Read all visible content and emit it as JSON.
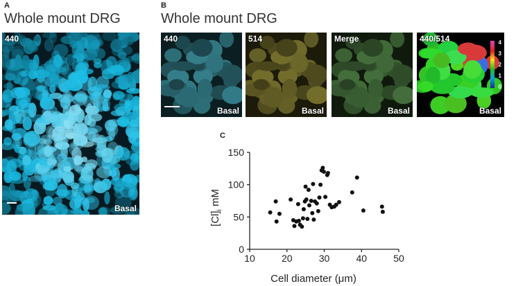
{
  "panel_a": {
    "letter": "A",
    "title": "Whole mount DRG",
    "channel_label": "440",
    "condition_label": "Basal"
  },
  "panel_b": {
    "letter": "B",
    "title": "Whole mount DRG",
    "images": [
      {
        "label": "440",
        "condition": "Basal",
        "tint": "#1fb8c8"
      },
      {
        "label": "514",
        "condition": "Basal",
        "tint": "#c8b02a"
      },
      {
        "label": "Merge",
        "condition": "Basal",
        "tint": "#6fae5c"
      },
      {
        "label": "440/514",
        "condition": "Basal",
        "tint": "#3cc83c"
      }
    ],
    "colorbar_ticks": [
      "4",
      "3",
      "2",
      "1",
      "0"
    ]
  },
  "panel_c": {
    "letter": "C"
  },
  "chart_data": {
    "type": "scatter",
    "xlabel": "Cell diameter (μm)",
    "ylabel": "[Cl]",
    "ylabel_sub": "i",
    "ylabel_unit": " mM",
    "xlim": [
      10,
      50
    ],
    "ylim": [
      0,
      150
    ],
    "xticks": [
      10,
      20,
      30,
      40,
      50
    ],
    "yticks": [
      0,
      50,
      100,
      150
    ],
    "grid": false,
    "points": [
      [
        15.5,
        57
      ],
      [
        17,
        74
      ],
      [
        17.2,
        43
      ],
      [
        18,
        55
      ],
      [
        21,
        77
      ],
      [
        21.7,
        45
      ],
      [
        22,
        36
      ],
      [
        22.5,
        43
      ],
      [
        23,
        70
      ],
      [
        23.2,
        44
      ],
      [
        23.5,
        38
      ],
      [
        24,
        35
      ],
      [
        24.3,
        48
      ],
      [
        24.5,
        62
      ],
      [
        24.8,
        74
      ],
      [
        25,
        97
      ],
      [
        25.2,
        77
      ],
      [
        25.5,
        47
      ],
      [
        25.8,
        92
      ],
      [
        26,
        68
      ],
      [
        26.5,
        75
      ],
      [
        26.8,
        56
      ],
      [
        27,
        101
      ],
      [
        27.2,
        46
      ],
      [
        27.5,
        74
      ],
      [
        28,
        71
      ],
      [
        28.4,
        59
      ],
      [
        28.7,
        80
      ],
      [
        29,
        100
      ],
      [
        29.3,
        122
      ],
      [
        29.6,
        126
      ],
      [
        29.9,
        120
      ],
      [
        30.3,
        81
      ],
      [
        30.8,
        115
      ],
      [
        31,
        118
      ],
      [
        31.5,
        69
      ],
      [
        32,
        65
      ],
      [
        32.7,
        66
      ],
      [
        33.2,
        69
      ],
      [
        34,
        73
      ],
      [
        37.5,
        88
      ],
      [
        38.8,
        111
      ],
      [
        40.5,
        60
      ],
      [
        45.5,
        66
      ],
      [
        45.7,
        58
      ]
    ]
  }
}
